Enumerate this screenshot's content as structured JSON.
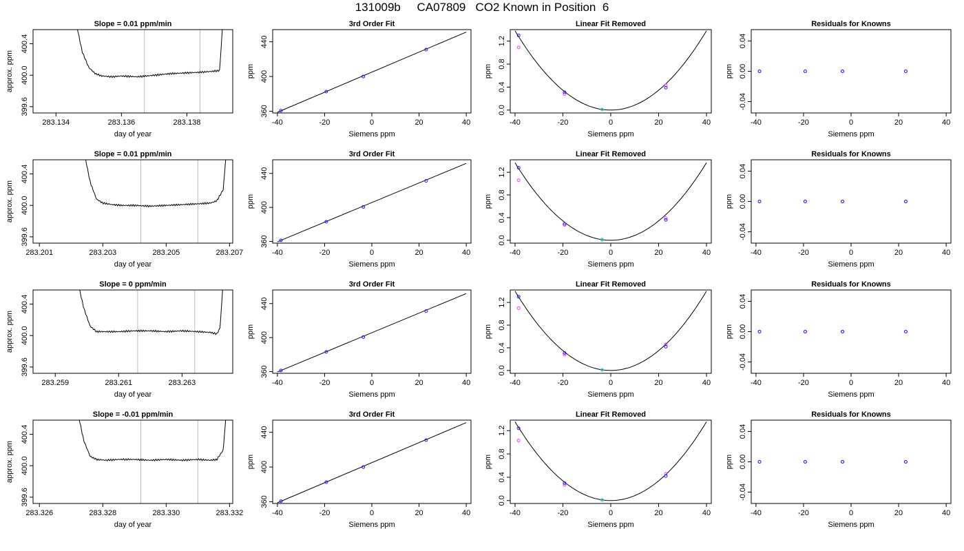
{
  "figure": {
    "title": "131009b     CA07809   CO2 Known in Position  6"
  },
  "chart_data": [
    {
      "type": "line",
      "panel": "time",
      "title": "Slope =  0.01  ppm/min",
      "xlabel": "day of year",
      "ylabel": "approx. ppm",
      "xlim": [
        283.1333,
        283.1394
      ],
      "ylim": [
        399.52,
        400.58
      ],
      "xticks": [
        283.134,
        283.136,
        283.138
      ],
      "xtick_labels": [
        "283.134",
        "283.136",
        "283.138"
      ],
      "yticks": [
        399.6,
        400.0,
        400.4
      ],
      "ytick_labels": [
        "399.6",
        "400.0",
        "400.4"
      ],
      "vlines": [
        283.1367,
        283.1384
      ],
      "x": [
        283.1346,
        283.1348,
        283.135,
        283.1352,
        283.1354,
        283.1357,
        283.136,
        283.1365,
        283.137,
        283.1375,
        283.138,
        283.1385,
        283.1388,
        283.139,
        283.1391
      ],
      "y": [
        400.7,
        400.3,
        400.1,
        400.02,
        399.99,
        399.98,
        399.99,
        399.98,
        400.0,
        400.02,
        400.03,
        400.04,
        400.05,
        400.06,
        400.7
      ]
    },
    {
      "type": "line",
      "panel": "fit",
      "title": "3rd Order Fit",
      "xlabel": "Siemens ppm",
      "ylabel": "ppm",
      "xlim": [
        -42,
        42
      ],
      "ylim": [
        358,
        454
      ],
      "xticks": [
        -40,
        -20,
        0,
        20,
        40
      ],
      "xtick_labels": [
        "-40",
        "-20",
        "0",
        "20",
        "40"
      ],
      "yticks": [
        360,
        400,
        440
      ],
      "ytick_labels": [
        "360",
        "400",
        "440"
      ],
      "line": {
        "x": [
          -40,
          40
        ],
        "y": [
          358.8,
          451.2
        ]
      },
      "points_blue": {
        "x": [
          -38.5,
          -19.3,
          -3.6,
          23.0
        ],
        "y": [
          360.7,
          382.6,
          400.0,
          431.0
        ]
      },
      "points_magenta": {
        "x": [
          -3.6
        ],
        "y": [
          400.0
        ]
      }
    },
    {
      "type": "line",
      "panel": "linear_removed",
      "title": "Linear Fit Removed",
      "xlabel": "Siemens ppm",
      "ylabel": "ppm",
      "xlim": [
        -42,
        42
      ],
      "ylim": [
        -0.05,
        1.4
      ],
      "xticks": [
        -40,
        -20,
        0,
        20,
        40
      ],
      "xtick_labels": [
        "-40",
        "-20",
        "0",
        "20",
        "40"
      ],
      "yticks": [
        0.0,
        0.4,
        0.8,
        1.2
      ],
      "ytick_labels": [
        "0.0",
        "0.4",
        "0.8",
        "1.2"
      ],
      "curve_coeffs": [
        0.0,
        0.0,
        0.000863
      ],
      "points_blue": {
        "x": [
          -38.5,
          -19.3,
          -3.6,
          23.0
        ],
        "y": [
          1.3,
          0.31,
          0.01,
          0.39
        ]
      },
      "points_magenta": {
        "x": [
          -38.5,
          -19.3,
          -3.6,
          23.0
        ],
        "y": [
          1.09,
          0.28,
          0.01,
          0.43
        ]
      }
    },
    {
      "type": "scatter",
      "panel": "residuals",
      "title": "Residuals for Knowns",
      "xlabel": "Siemens ppm",
      "ylabel": "ppm",
      "xlim": [
        -42,
        42
      ],
      "ylim": [
        -0.055,
        0.055
      ],
      "xticks": [
        -40,
        -20,
        0,
        20,
        40
      ],
      "xtick_labels": [
        "-40",
        "-20",
        "0",
        "20",
        "40"
      ],
      "yticks": [
        -0.04,
        0.0,
        0.04
      ],
      "ytick_labels": [
        "-0.04",
        "0.00",
        "0.04"
      ],
      "points_blue": {
        "x": [
          -38.5,
          -19.3,
          -3.6,
          23.0
        ],
        "y": [
          0,
          0,
          0,
          0
        ]
      },
      "points_magenta": {
        "x": [
          -38.5,
          -19.3,
          -3.6,
          23.0
        ],
        "y": [
          0,
          0,
          0,
          0
        ]
      }
    },
    {
      "type": "line",
      "panel": "time",
      "title": "Slope =  0.01  ppm/min",
      "xlabel": "day of year",
      "ylabel": "approx. ppm",
      "xlim": [
        283.2008,
        283.2071
      ],
      "ylim": [
        399.52,
        400.58
      ],
      "xticks": [
        283.201,
        283.203,
        283.205,
        283.207
      ],
      "xtick_labels": [
        "283.201",
        "283.203",
        "283.205",
        "283.207"
      ],
      "yticks": [
        399.6,
        400.0,
        400.4
      ],
      "ytick_labels": [
        "399.6",
        "400.0",
        "400.4"
      ],
      "vlines": [
        283.2042,
        283.206
      ],
      "x": [
        283.2024,
        283.2026,
        283.2028,
        283.203,
        283.2033,
        283.2036,
        283.204,
        283.2045,
        283.205,
        283.2055,
        283.206,
        283.2064,
        283.2066,
        283.2068,
        283.2069
      ],
      "y": [
        400.7,
        400.3,
        400.08,
        400.03,
        400.01,
        400.0,
        400.0,
        399.99,
        400.0,
        400.01,
        400.02,
        400.03,
        400.06,
        400.2,
        400.7
      ]
    },
    {
      "type": "line",
      "panel": "fit",
      "title": "3rd Order Fit",
      "xlabel": "Siemens ppm",
      "ylabel": "ppm",
      "xlim": [
        -42,
        42
      ],
      "ylim": [
        358,
        456
      ],
      "xticks": [
        -40,
        -20,
        0,
        20,
        40
      ],
      "xtick_labels": [
        "-40",
        "-20",
        "0",
        "20",
        "40"
      ],
      "yticks": [
        360,
        400,
        440
      ],
      "ytick_labels": [
        "360",
        "400",
        "440"
      ],
      "line": {
        "x": [
          -40,
          40
        ],
        "y": [
          359.6,
          451.8
        ]
      },
      "points_blue": {
        "x": [
          -38.5,
          -19.3,
          -3.6,
          23.0
        ],
        "y": [
          361.3,
          383.2,
          400.6,
          431.2
        ]
      },
      "points_magenta": {
        "x": [
          -3.6
        ],
        "y": [
          400.6
        ]
      }
    },
    {
      "type": "line",
      "panel": "linear_removed",
      "title": "Linear Fit Removed",
      "xlabel": "Siemens ppm",
      "ylabel": "ppm",
      "xlim": [
        -42,
        42
      ],
      "ylim": [
        -0.05,
        1.42
      ],
      "xticks": [
        -40,
        -20,
        0,
        20,
        40
      ],
      "xtick_labels": [
        "-40",
        "-20",
        "0",
        "20",
        "40"
      ],
      "yticks": [
        0.0,
        0.4,
        0.8,
        1.2
      ],
      "ytick_labels": [
        "0.0",
        "0.4",
        "0.8",
        "1.2"
      ],
      "curve_coeffs": [
        0.0,
        0.0,
        0.000855
      ],
      "points_blue": {
        "x": [
          -38.5,
          -19.3,
          -3.6,
          23.0
        ],
        "y": [
          1.28,
          0.29,
          0.01,
          0.36
        ]
      },
      "points_magenta": {
        "x": [
          -38.5,
          -19.3,
          -3.6,
          23.0
        ],
        "y": [
          1.06,
          0.27,
          0.01,
          0.39
        ]
      }
    },
    {
      "type": "scatter",
      "panel": "residuals",
      "title": "Residuals for Knowns",
      "xlabel": "Siemens ppm",
      "ylabel": "ppm",
      "xlim": [
        -42,
        42
      ],
      "ylim": [
        -0.055,
        0.055
      ],
      "xticks": [
        -40,
        -20,
        0,
        20,
        40
      ],
      "xtick_labels": [
        "-40",
        "-20",
        "0",
        "20",
        "40"
      ],
      "yticks": [
        -0.04,
        0.0,
        0.04
      ],
      "ytick_labels": [
        "-0.04",
        "0.00",
        "0.04"
      ],
      "points_blue": {
        "x": [
          -38.5,
          -19.3,
          -3.6,
          23.0
        ],
        "y": [
          0,
          0,
          0,
          0
        ]
      },
      "points_magenta": {
        "x": [
          -38.5,
          -19.3,
          -3.6,
          23.0
        ],
        "y": [
          0,
          0,
          0,
          0
        ]
      }
    },
    {
      "type": "line",
      "panel": "time",
      "title": "Slope =  0  ppm/min",
      "xlabel": "day of year",
      "ylabel": "approx. ppm",
      "xlim": [
        283.2583,
        283.2646
      ],
      "ylim": [
        399.52,
        400.58
      ],
      "xticks": [
        283.259,
        283.261,
        283.263
      ],
      "xtick_labels": [
        "283.259",
        "283.261",
        "283.263"
      ],
      "yticks": [
        399.6,
        400.0,
        400.4
      ],
      "ytick_labels": [
        "399.6",
        "400.0",
        "400.4"
      ],
      "vlines": [
        283.2616,
        283.2634
      ],
      "x": [
        283.2597,
        283.2599,
        283.2601,
        283.2603,
        283.2606,
        283.261,
        283.2615,
        283.262,
        283.2625,
        283.263,
        283.2635,
        283.2639,
        283.2641,
        283.2642,
        283.2643
      ],
      "y": [
        400.7,
        400.35,
        400.12,
        400.05,
        400.05,
        400.05,
        400.06,
        400.06,
        400.05,
        400.06,
        400.05,
        400.04,
        400.02,
        400.1,
        400.7
      ]
    },
    {
      "type": "line",
      "panel": "fit",
      "title": "3rd Order Fit",
      "xlabel": "Siemens ppm",
      "ylabel": "ppm",
      "xlim": [
        -42,
        42
      ],
      "ylim": [
        358,
        456
      ],
      "xticks": [
        -40,
        -20,
        0,
        20,
        40
      ],
      "xtick_labels": [
        "-40",
        "-20",
        "0",
        "20",
        "40"
      ],
      "yticks": [
        360,
        400,
        440
      ],
      "ytick_labels": [
        "360",
        "400",
        "440"
      ],
      "line": {
        "x": [
          -40,
          40
        ],
        "y": [
          359.6,
          451.8
        ]
      },
      "points_blue": {
        "x": [
          -38.5,
          -19.3,
          -3.6,
          23.0
        ],
        "y": [
          361.3,
          383.2,
          400.6,
          431.2
        ]
      },
      "points_magenta": {
        "x": [
          -3.6
        ],
        "y": [
          400.6
        ]
      }
    },
    {
      "type": "line",
      "panel": "linear_removed",
      "title": "Linear Fit Removed",
      "xlabel": "Siemens ppm",
      "ylabel": "ppm",
      "xlim": [
        -42,
        42
      ],
      "ylim": [
        -0.05,
        1.42
      ],
      "xticks": [
        -40,
        -20,
        0,
        20,
        40
      ],
      "xtick_labels": [
        "-40",
        "-20",
        "0",
        "20",
        "40"
      ],
      "yticks": [
        0.0,
        0.4,
        0.8,
        1.2
      ],
      "ytick_labels": [
        "0.0",
        "0.4",
        "0.8",
        "1.2"
      ],
      "curve_coeffs": [
        0.0,
        0.0,
        0.000875
      ],
      "points_blue": {
        "x": [
          -38.5,
          -19.3,
          -3.6,
          23.0
        ],
        "y": [
          1.3,
          0.31,
          0.01,
          0.42
        ]
      },
      "points_magenta": {
        "x": [
          -38.5,
          -19.3,
          -3.6,
          23.0
        ],
        "y": [
          1.1,
          0.28,
          0.01,
          0.46
        ]
      }
    },
    {
      "type": "scatter",
      "panel": "residuals",
      "title": "Residuals for Knowns",
      "xlabel": "Siemens ppm",
      "ylabel": "ppm",
      "xlim": [
        -42,
        42
      ],
      "ylim": [
        -0.055,
        0.055
      ],
      "xticks": [
        -40,
        -20,
        0,
        20,
        40
      ],
      "xtick_labels": [
        "-40",
        "-20",
        "0",
        "20",
        "40"
      ],
      "yticks": [
        -0.04,
        0.0,
        0.04
      ],
      "ytick_labels": [
        "-0.04",
        "0.00",
        "0.04"
      ],
      "points_blue": {
        "x": [
          -38.5,
          -19.3,
          -3.6,
          23.0
        ],
        "y": [
          0,
          0,
          0,
          0
        ]
      },
      "points_magenta": {
        "x": [
          -38.5,
          -19.3,
          -3.6,
          23.0
        ],
        "y": [
          0,
          0,
          0,
          0
        ]
      }
    },
    {
      "type": "line",
      "panel": "time",
      "title": "Slope =  -0.01  ppm/min",
      "xlabel": "day of year",
      "ylabel": "approx. ppm",
      "xlim": [
        283.3258,
        283.3321
      ],
      "ylim": [
        399.52,
        400.58
      ],
      "xticks": [
        283.326,
        283.328,
        283.33,
        283.332
      ],
      "xtick_labels": [
        "283.326",
        "283.328",
        "283.330",
        "283.332"
      ],
      "yticks": [
        399.6,
        400.0,
        400.4
      ],
      "ytick_labels": [
        "399.6",
        "400.0",
        "400.4"
      ],
      "vlines": [
        283.3292,
        283.331
      ],
      "x": [
        283.3272,
        283.3274,
        283.3276,
        283.3278,
        283.3281,
        283.3285,
        283.329,
        283.3295,
        283.33,
        283.3305,
        283.331,
        283.3314,
        283.3316,
        283.3318,
        283.3319
      ],
      "y": [
        400.7,
        400.32,
        400.12,
        400.08,
        400.07,
        400.08,
        400.08,
        400.07,
        400.08,
        400.07,
        400.08,
        400.07,
        400.08,
        400.2,
        400.7
      ]
    },
    {
      "type": "line",
      "panel": "fit",
      "title": "3rd Order Fit",
      "xlabel": "Siemens ppm",
      "ylabel": "ppm",
      "xlim": [
        -42,
        42
      ],
      "ylim": [
        358,
        454
      ],
      "xticks": [
        -40,
        -20,
        0,
        20,
        40
      ],
      "xtick_labels": [
        "-40",
        "-20",
        "0",
        "20",
        "40"
      ],
      "yticks": [
        360,
        400,
        440
      ],
      "ytick_labels": [
        "360",
        "400",
        "440"
      ],
      "line": {
        "x": [
          -40,
          40
        ],
        "y": [
          358.8,
          451.2
        ]
      },
      "points_blue": {
        "x": [
          -38.5,
          -19.3,
          -3.6,
          23.0
        ],
        "y": [
          360.7,
          382.6,
          400.0,
          431.0
        ]
      },
      "points_magenta": {
        "x": [
          -3.6
        ],
        "y": [
          400.0
        ]
      }
    },
    {
      "type": "line",
      "panel": "linear_removed",
      "title": "Linear Fit Removed",
      "xlabel": "Siemens ppm",
      "ylabel": "ppm",
      "xlim": [
        -42,
        42
      ],
      "ylim": [
        -0.05,
        1.38
      ],
      "xticks": [
        -40,
        -20,
        0,
        20,
        40
      ],
      "xtick_labels": [
        "-40",
        "-20",
        "0",
        "20",
        "40"
      ],
      "yticks": [
        0.0,
        0.4,
        0.8,
        1.2
      ],
      "ytick_labels": [
        "0.0",
        "0.4",
        "0.8",
        "1.2"
      ],
      "curve_coeffs": [
        0.0,
        0.0,
        0.000845
      ],
      "points_blue": {
        "x": [
          -38.5,
          -19.3,
          -3.6,
          23.0
        ],
        "y": [
          1.24,
          0.3,
          0.01,
          0.42
        ]
      },
      "points_magenta": {
        "x": [
          -38.5,
          -19.3,
          -3.6,
          23.0
        ],
        "y": [
          1.03,
          0.27,
          0.01,
          0.46
        ]
      }
    },
    {
      "type": "scatter",
      "panel": "residuals",
      "title": "Residuals for Knowns",
      "xlabel": "Siemens ppm",
      "ylabel": "ppm",
      "xlim": [
        -42,
        42
      ],
      "ylim": [
        -0.055,
        0.055
      ],
      "xticks": [
        -40,
        -20,
        0,
        20,
        40
      ],
      "xtick_labels": [
        "-40",
        "-20",
        "0",
        "20",
        "40"
      ],
      "yticks": [
        -0.04,
        0.0,
        0.04
      ],
      "ytick_labels": [
        "-0.04",
        "0.00",
        "0.04"
      ],
      "points_blue": {
        "x": [
          -38.5,
          -19.3,
          -3.6,
          23.0
        ],
        "y": [
          0,
          0,
          0,
          0
        ]
      },
      "points_magenta": {
        "x": [
          -38.5,
          -19.3,
          -3.6,
          23.0
        ],
        "y": [
          0,
          0,
          0,
          0
        ]
      }
    }
  ],
  "colors": {
    "blue": "#1a1aff",
    "magenta": "#ff33ff",
    "cyan": "#33cccc",
    "vline": "#bbbbbb",
    "axis": "#000000"
  }
}
